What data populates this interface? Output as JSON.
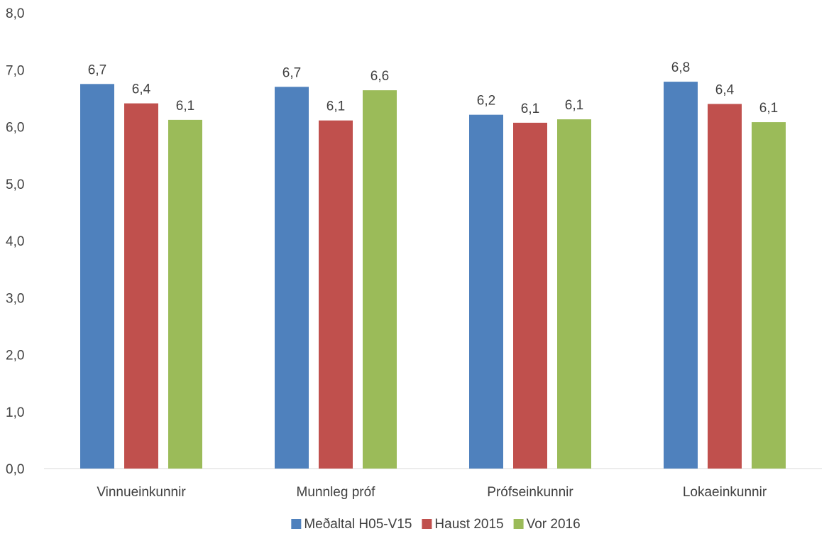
{
  "chart_data": {
    "type": "bar",
    "categories": [
      "Vinnueinkunnir",
      "Munnleg próf",
      "Prófseinkunnir",
      "Lokaeinkunnir"
    ],
    "series": [
      {
        "name": "Meðaltal H05-V15",
        "color": "#4f81bd",
        "values": [
          6.75,
          6.7,
          6.21,
          6.79
        ],
        "labels": [
          "6,7",
          "6,7",
          "6,2",
          "6,8"
        ]
      },
      {
        "name": "Haust 2015",
        "color": "#c0504d",
        "values": [
          6.41,
          6.11,
          6.07,
          6.4
        ],
        "labels": [
          "6,4",
          "6,1",
          "6,1",
          "6,4"
        ]
      },
      {
        "name": "Vor 2016",
        "color": "#9bbb59",
        "values": [
          6.12,
          6.64,
          6.13,
          6.08
        ],
        "labels": [
          "6,1",
          "6,6",
          "6,1",
          "6,1"
        ]
      }
    ],
    "y_ticks": [
      "0,0",
      "1,0",
      "2,0",
      "3,0",
      "4,0",
      "5,0",
      "6,0",
      "7,0",
      "8,0"
    ],
    "ylim": [
      0,
      8
    ],
    "grid": false,
    "legend_position": "bottom"
  }
}
